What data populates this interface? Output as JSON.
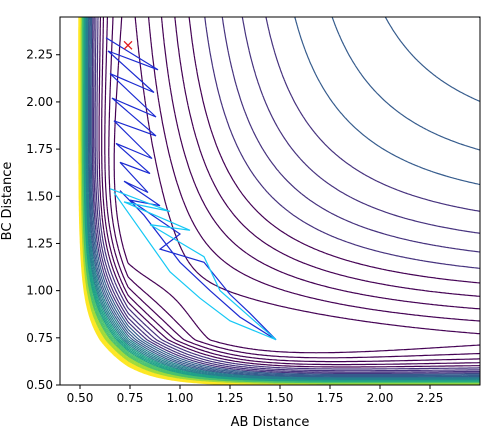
{
  "chart_data": {
    "type": "contour",
    "xlabel": "AB Distance",
    "ylabel": "BC Distance",
    "xlim": [
      0.4,
      2.5
    ],
    "ylim": [
      0.5,
      2.45
    ],
    "x_ticks": [
      0.5,
      0.75,
      1.0,
      1.25,
      1.5,
      1.75,
      2.0,
      2.25
    ],
    "x_tick_labels": [
      "0.50",
      "0.75",
      "1.00",
      "1.25",
      "1.50",
      "1.75",
      "2.00",
      "2.25"
    ],
    "y_ticks": [
      0.5,
      0.75,
      1.0,
      1.25,
      1.5,
      1.75,
      2.0,
      2.25
    ],
    "y_tick_labels": [
      "0.50",
      "0.75",
      "1.00",
      "1.25",
      "1.50",
      "1.75",
      "2.00",
      "2.25"
    ],
    "colormap": "viridis",
    "contour_colors": [
      "#440154",
      "#46327e",
      "#365c8d",
      "#277f8e",
      "#1fa187",
      "#4ac16d",
      "#a0da39",
      "#fde725"
    ],
    "trajectory_color": "#1c2bd1",
    "trajectory_light_color": "#16c8f5",
    "trajectory_lines": [
      {
        "name": "trajectory-1",
        "color": "#1c2bd1",
        "points": [
          [
            0.63,
            2.34
          ],
          [
            0.89,
            2.17
          ],
          [
            0.64,
            2.27
          ],
          [
            0.87,
            2.05
          ],
          [
            0.65,
            2.15
          ],
          [
            0.88,
            1.92
          ],
          [
            0.66,
            2.02
          ],
          [
            0.88,
            1.82
          ],
          [
            0.67,
            1.9
          ],
          [
            0.86,
            1.7
          ],
          [
            0.68,
            1.78
          ],
          [
            0.85,
            1.62
          ],
          [
            0.7,
            1.68
          ],
          [
            0.84,
            1.52
          ],
          [
            0.72,
            1.58
          ],
          [
            0.9,
            1.45
          ],
          [
            0.75,
            1.48
          ],
          [
            1.0,
            1.3
          ],
          [
            0.9,
            1.22
          ],
          [
            1.12,
            1.15
          ],
          [
            1.25,
            0.98
          ],
          [
            1.35,
            0.88
          ],
          [
            1.48,
            0.74
          ],
          [
            1.3,
            0.86
          ],
          [
            1.15,
            1.0
          ],
          [
            1.0,
            1.15
          ],
          [
            0.82,
            1.4
          ],
          [
            0.7,
            1.53
          ]
        ]
      },
      {
        "name": "trajectory-2",
        "color": "#16c8f5",
        "points": [
          [
            0.65,
            1.54
          ],
          [
            0.95,
            1.42
          ],
          [
            0.72,
            1.47
          ],
          [
            1.05,
            1.32
          ],
          [
            0.85,
            1.35
          ],
          [
            1.12,
            1.18
          ],
          [
            1.2,
            1.0
          ],
          [
            1.35,
            0.86
          ],
          [
            1.48,
            0.74
          ],
          [
            1.25,
            0.84
          ],
          [
            1.1,
            0.96
          ],
          [
            0.95,
            1.1
          ],
          [
            0.85,
            1.25
          ],
          [
            0.75,
            1.4
          ],
          [
            0.67,
            1.52
          ]
        ]
      }
    ],
    "marker": {
      "x": 0.74,
      "y": 2.3,
      "symbol": "x",
      "color": "#e31a1c"
    }
  }
}
